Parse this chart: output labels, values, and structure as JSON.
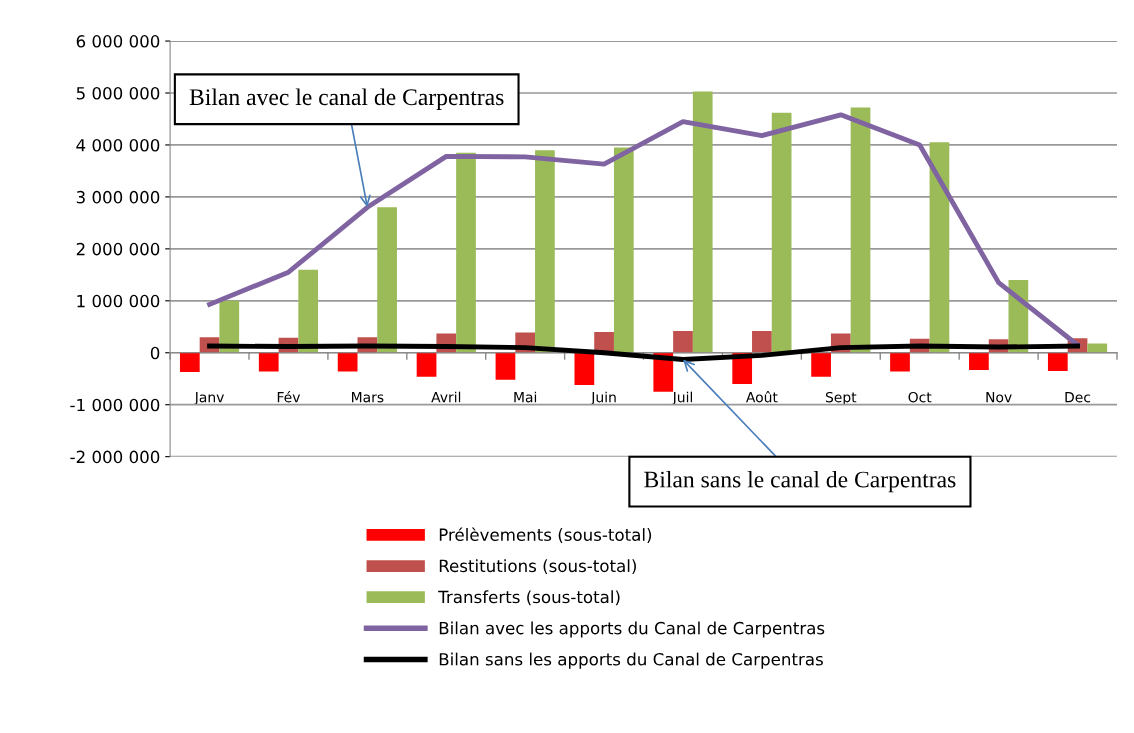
{
  "chart_data": {
    "type": "bar",
    "categories": [
      "Janv",
      "Fév",
      "Mars",
      "Avril",
      "Mai",
      "Juin",
      "Juil",
      "Août",
      "Sept",
      "Oct",
      "Nov",
      "Dec"
    ],
    "series": [
      {
        "name": "Prélèvements (sous-total)",
        "color": "#ff0000",
        "values": [
          -370000,
          -360000,
          -360000,
          -460000,
          -520000,
          -620000,
          -750000,
          -600000,
          -460000,
          -360000,
          -330000,
          -350000
        ]
      },
      {
        "name": "Restitutions (sous-total)",
        "color": "#c0504d",
        "values": [
          300000,
          290000,
          300000,
          370000,
          390000,
          400000,
          420000,
          420000,
          370000,
          270000,
          260000,
          280000
        ]
      },
      {
        "name": "Transferts (sous-total)",
        "color": "#9bbb59",
        "values": [
          1000000,
          1600000,
          2800000,
          3850000,
          3900000,
          3950000,
          5030000,
          4620000,
          4720000,
          4050000,
          1400000,
          180000
        ]
      },
      {
        "name": "Bilan avec les apports du Canal de Carpentras",
        "type": "line",
        "color": "#8064a2",
        "values": [
          930000,
          1550000,
          2800000,
          3780000,
          3770000,
          3630000,
          4450000,
          4180000,
          4580000,
          4000000,
          1350000,
          150000
        ]
      },
      {
        "name": "Bilan sans les apports du Canal de Carpentras",
        "type": "line",
        "color": "#000000",
        "values": [
          130000,
          120000,
          130000,
          120000,
          100000,
          0,
          -130000,
          -50000,
          100000,
          130000,
          110000,
          130000
        ]
      }
    ],
    "ylim": [
      -2000000,
      6000000
    ],
    "yticks": [
      {
        "value": -2000000,
        "label": "-2 000 000"
      },
      {
        "value": -1000000,
        "label": "-1 000 000"
      },
      {
        "value": 0,
        "label": "0"
      },
      {
        "value": 1000000,
        "label": "1 000 000"
      },
      {
        "value": 2000000,
        "label": "2 000 000"
      },
      {
        "value": 3000000,
        "label": "3 000 000"
      },
      {
        "value": 4000000,
        "label": "4 000 000"
      },
      {
        "value": 5000000,
        "label": "5 000 000"
      },
      {
        "value": 6000000,
        "label": "6 000 000"
      }
    ],
    "grid": "y",
    "legend": "bottom",
    "marker": "none",
    "line_style": "solid",
    "annotations": [
      {
        "text": "Bilan avec le canal de Carpentras",
        "x": "Mars",
        "y": 2800000
      },
      {
        "text": "Bilan sans le canal de Carpentras",
        "x": "Juil",
        "y": -130000
      }
    ]
  }
}
